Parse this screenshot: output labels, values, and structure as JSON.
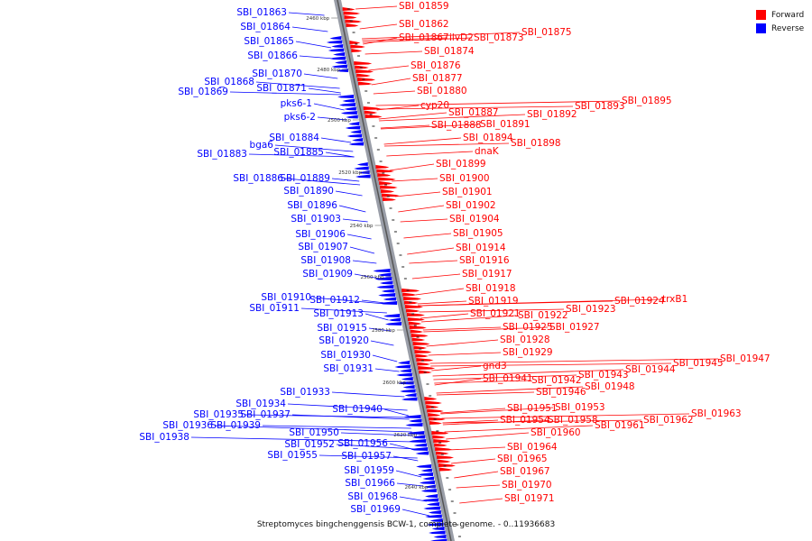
{
  "caption": "Streptomyces bingchenggensis BCW-1, complete genome. - 0..11936683",
  "legend": [
    {
      "label": "Forward",
      "color": "#ff0000"
    },
    {
      "label": "Reverse",
      "color": "#0000ff"
    }
  ],
  "ticks": [
    "2460 kbp",
    "2480 kbp",
    "2500 kbp",
    "2520 kbp",
    "2540 kbp",
    "2560 kbp",
    "2580 kbp",
    "2600 kbp",
    "2620 kbp",
    "2640 kbp"
  ],
  "forward_labels": [
    "SBI_01859",
    "SBI_01862",
    "SBI_01867",
    "ilvD2",
    "SBI_01873",
    "SBI_01875",
    "SBI_01874",
    "SBI_01876",
    "SBI_01877",
    "SBI_01880",
    "cyp20",
    "SBI_01887",
    "SBI_01888",
    "SBI_01891",
    "SBI_01892",
    "SBI_01893",
    "SBI_01895",
    "SBI_01894",
    "SBI_01898",
    "dnaK",
    "SBI_01899",
    "SBI_01900",
    "SBI_01901",
    "SBI_01902",
    "SBI_01904",
    "SBI_01905",
    "SBI_01914",
    "SBI_01916",
    "SBI_01917",
    "SBI_01918",
    "SBI_01919",
    "SBI_01921",
    "SBI_01922",
    "SBI_01923",
    "SBI_01924",
    "trxB1",
    "SBI_01925",
    "SBI_01927",
    "SBI_01928",
    "SBI_01929",
    "gnd3",
    "SBI_01941",
    "SBI_01942",
    "SBI_01943",
    "SBI_01944",
    "SBI_01945",
    "SBI_01947",
    "SBI_01948",
    "SBI_01946",
    "SBI_01951",
    "SBI_01953",
    "SBI_01954",
    "SBI_01958",
    "SBI_01961",
    "SBI_01962",
    "SBI_01963",
    "SBI_01960",
    "SBI_01964",
    "SBI_01965",
    "SBI_01967",
    "SBI_01970",
    "SBI_01971"
  ],
  "reverse_labels": [
    "SBI_01863",
    "SBI_01864",
    "SBI_01865",
    "SBI_01866",
    "SBI_01870",
    "SBI_01868",
    "SBI_01869",
    "SBI_01871",
    "pks6-1",
    "pks6-2",
    "SBI_01884",
    "bga6",
    "SBI_01883",
    "SBI_01885",
    "SBI_01886",
    "SBI_01889",
    "SBI_01890",
    "SBI_01896",
    "SBI_01903",
    "SBI_01906",
    "SBI_01907",
    "SBI_01908",
    "SBI_01909",
    "SBI_01910",
    "SBI_01912",
    "SBI_01911",
    "SBI_01913",
    "SBI_01915",
    "SBI_01920",
    "SBI_01930",
    "SBI_01931",
    "SBI_01933",
    "SBI_01934",
    "SBI_01935",
    "SBI_01937",
    "SBI_01936",
    "SBI_01939",
    "SBI_01938",
    "SBI_01940",
    "SBI_01950",
    "SBI_01952",
    "SBI_01956",
    "SBI_01955",
    "SBI_01957",
    "SBI_01959",
    "SBI_01966",
    "SBI_01968",
    "SBI_01969"
  ]
}
